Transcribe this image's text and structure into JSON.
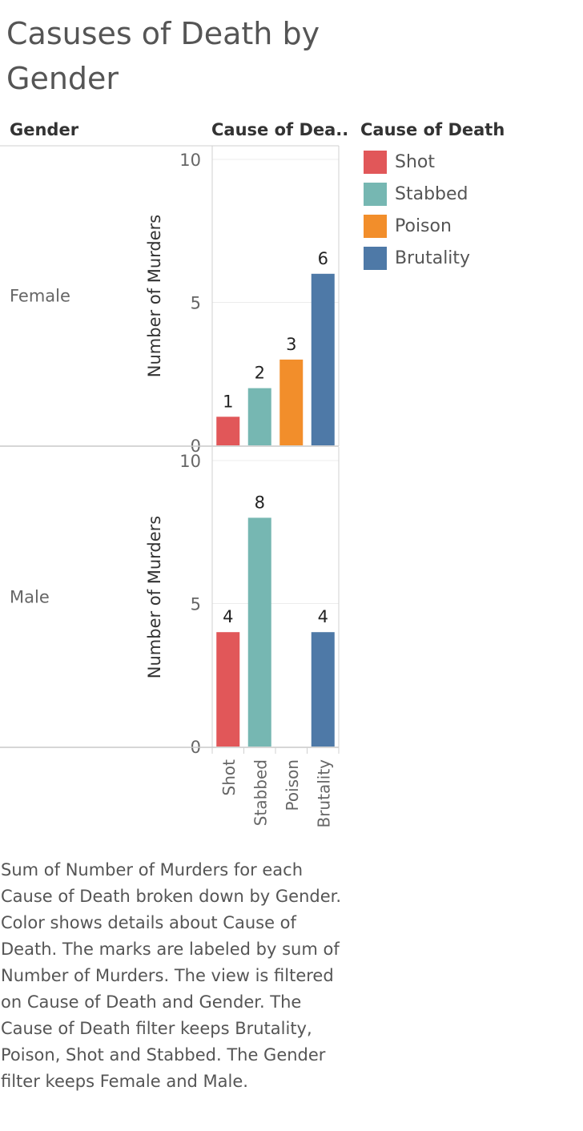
{
  "title": "Casuses of Death by Gender",
  "header": {
    "row_dim": "Gender",
    "col_dim": "Cause of Dea.."
  },
  "legend": {
    "title": "Cause of Death",
    "items": [
      {
        "label": "Shot",
        "color": "#E15759"
      },
      {
        "label": "Stabbed",
        "color": "#76B7B2"
      },
      {
        "label": "Poison",
        "color": "#F28E2B"
      },
      {
        "label": "Brutality",
        "color": "#4E79A7"
      }
    ]
  },
  "caption": "Sum of Number of Murders for each Cause of Death broken down by Gender.  Color shows details about Cause of Death.  The marks are labeled by sum of Number of Murders. The view is filtered on Cause of Death and Gender. The Cause of Death filter keeps Brutality, Poison, Shot and Stabbed. The Gender filter keeps Female and Male.",
  "chart_data": {
    "type": "bar",
    "title": "Casuses of Death by Gender",
    "ylabel": "Number of Murders",
    "xlabel": "Cause of Death",
    "categories": [
      "Shot",
      "Stabbed",
      "Poison",
      "Brutality"
    ],
    "colors": [
      "#E15759",
      "#76B7B2",
      "#F28E2B",
      "#4E79A7"
    ],
    "ylim": [
      0,
      10
    ],
    "yticks": [
      0,
      5,
      10
    ],
    "grid": true,
    "legend_position": "right",
    "panels": [
      {
        "gender": "Female",
        "values": [
          1,
          2,
          3,
          6
        ]
      },
      {
        "gender": "Male",
        "values": [
          4,
          8,
          null,
          4
        ]
      }
    ]
  }
}
